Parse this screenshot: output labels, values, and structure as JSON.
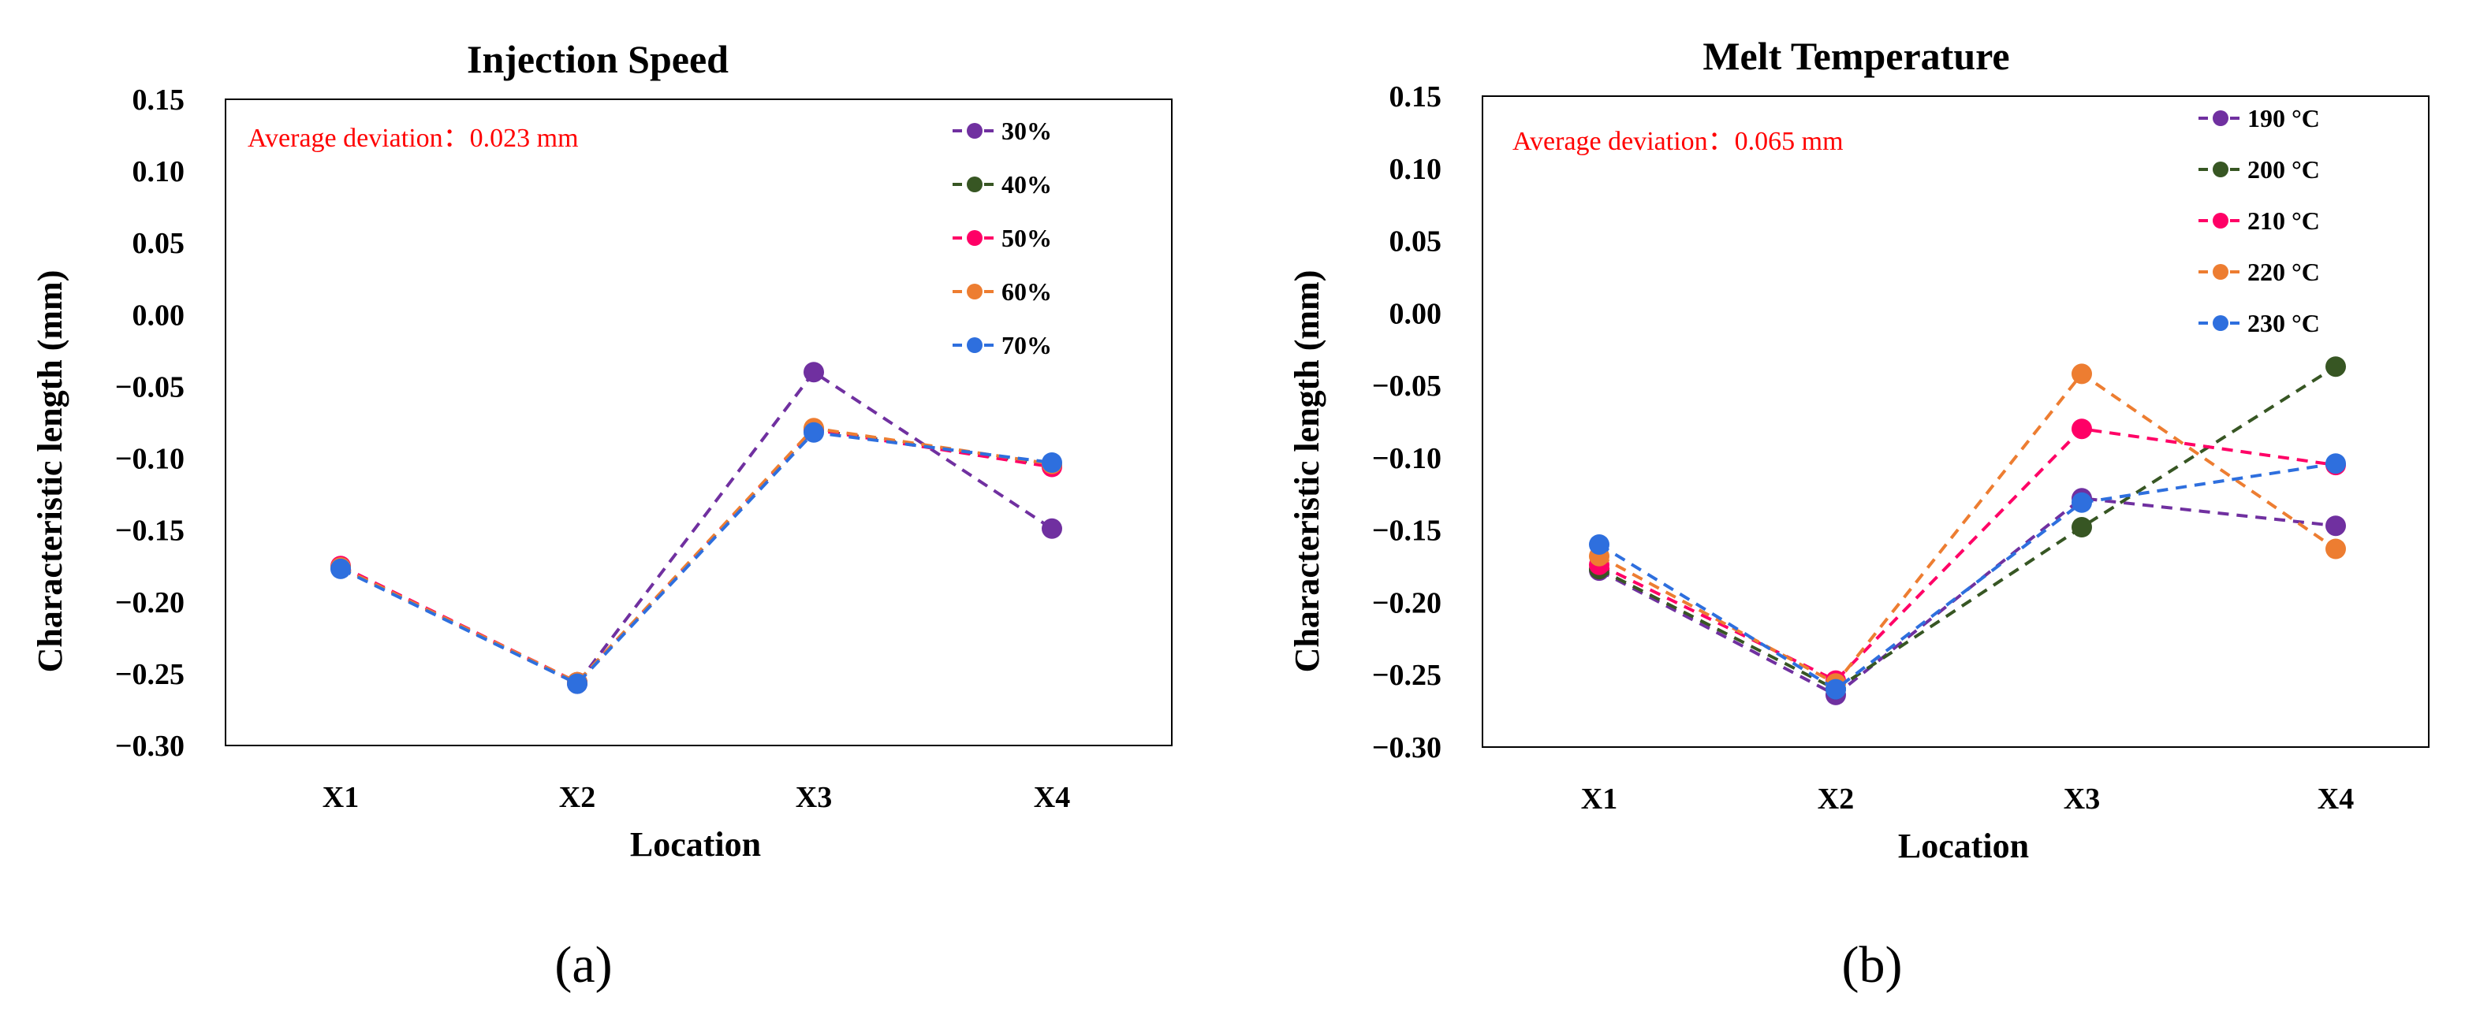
{
  "chart_data": [
    {
      "type": "line",
      "title": "Injection Speed",
      "xlabel": "Location",
      "ylabel": "Characteristic length (mm)",
      "categories": [
        "X1",
        "X2",
        "X3",
        "X4"
      ],
      "ylim": [
        -0.3,
        0.15
      ],
      "yticks": [
        "0.15",
        "0.10",
        "0.05",
        "0.00",
        "−0.05",
        "−0.10",
        "−0.15",
        "−0.20",
        "−0.25",
        "−0.30"
      ],
      "grid": false,
      "legend": "top-right",
      "annotation": "Average  deviation：0.023  mm",
      "annotation_color": "#ff0000",
      "panel_label": "(a)",
      "series": [
        {
          "name": "30%",
          "color": "#7030a0",
          "values": [
            -0.176,
            -0.257,
            -0.04,
            -0.149
          ]
        },
        {
          "name": "40%",
          "color": "#375623",
          "values": [
            -0.176,
            -0.256,
            -0.08,
            -0.105
          ]
        },
        {
          "name": "50%",
          "color": "#ff0066",
          "values": [
            -0.175,
            -0.256,
            -0.08,
            -0.106
          ]
        },
        {
          "name": "60%",
          "color": "#ed7d31",
          "values": [
            -0.176,
            -0.256,
            -0.079,
            -0.104
          ]
        },
        {
          "name": "70%",
          "color": "#2e6fde",
          "values": [
            -0.177,
            -0.257,
            -0.082,
            -0.103
          ]
        }
      ]
    },
    {
      "type": "line",
      "title": "Melt Temperature",
      "xlabel": "Location",
      "ylabel": "Characteristic length (mm)",
      "categories": [
        "X1",
        "X2",
        "X3",
        "X4"
      ],
      "ylim": [
        -0.3,
        0.15
      ],
      "yticks": [
        "0.15",
        "0.10",
        "0.05",
        "0.00",
        "−0.05",
        "−0.10",
        "−0.15",
        "−0.20",
        "−0.25",
        "−0.30"
      ],
      "grid": false,
      "legend": "top-right",
      "annotation": "Average  deviation：0.065  mm",
      "annotation_color": "#ff0000",
      "panel_label": "(b)",
      "series": [
        {
          "name": "190 °C",
          "color": "#7030a0",
          "values": [
            -0.178,
            -0.264,
            -0.128,
            -0.147
          ]
        },
        {
          "name": "200 °C",
          "color": "#375623",
          "values": [
            -0.177,
            -0.26,
            -0.148,
            -0.037
          ]
        },
        {
          "name": "210 °C",
          "color": "#ff0066",
          "values": [
            -0.174,
            -0.254,
            -0.08,
            -0.105
          ]
        },
        {
          "name": "220 °C",
          "color": "#ed7d31",
          "values": [
            -0.168,
            -0.256,
            -0.042,
            -0.163
          ]
        },
        {
          "name": "230 °C",
          "color": "#2e6fde",
          "values": [
            -0.16,
            -0.26,
            -0.131,
            -0.104
          ]
        }
      ]
    }
  ]
}
